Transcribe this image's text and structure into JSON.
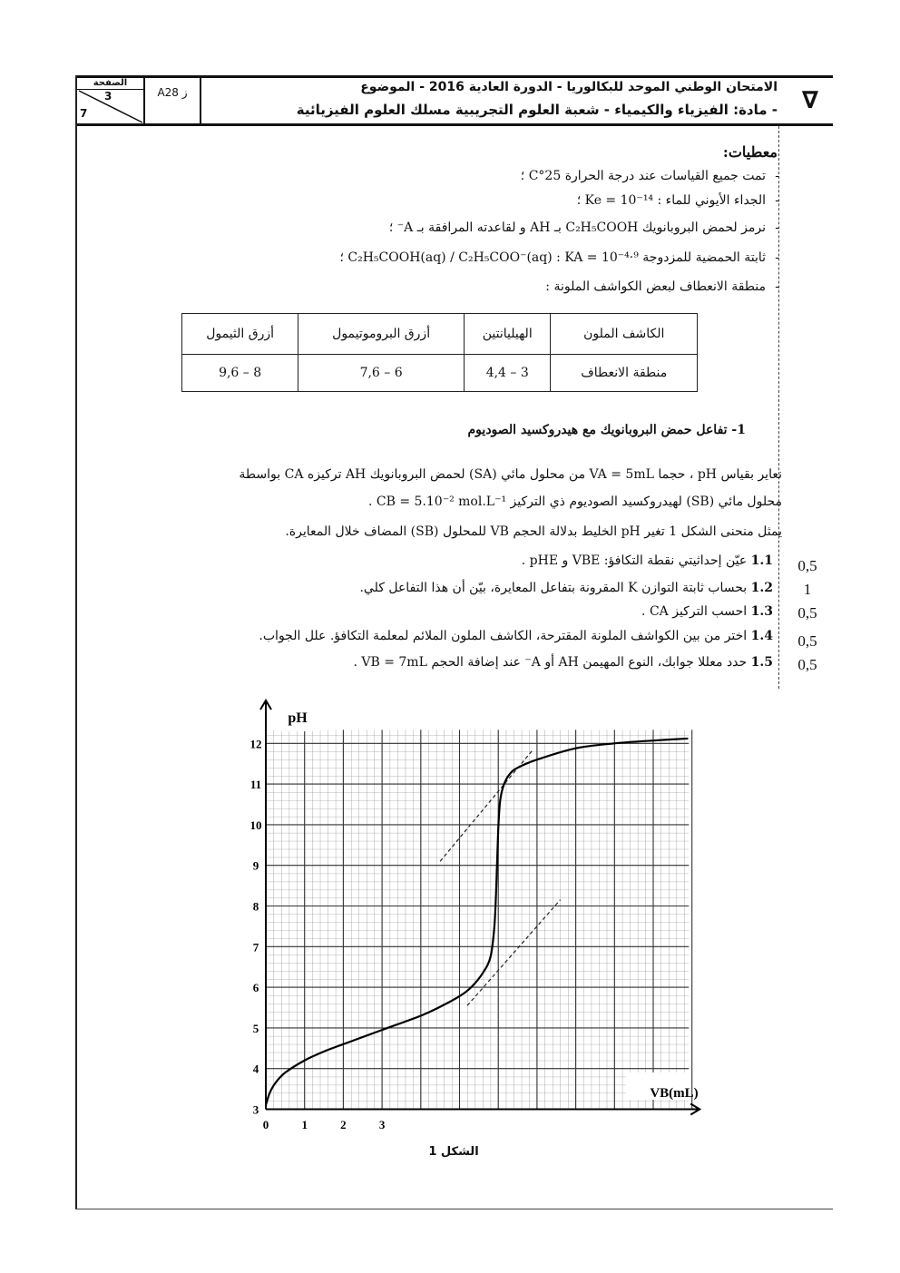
{
  "header": {
    "page_label": "الصفحة",
    "page_current": "3",
    "page_total": "7",
    "code": "A28 ز",
    "title_line1": "الامتحان الوطني الموحد للبكالوريا - الدورة العادية  2016 - الموضوع",
    "title_line2": "- مادة: الفيزياء والكيمياء - شعبة العلوم التجريبية مسلك العلوم الفيزيائية",
    "symbol": "∇"
  },
  "givens": {
    "title": "معطيات:",
    "items": [
      "تمت جميع القياسات عند درجة الحرارة 25°C ؛",
      "الجداء الأيوني للماء : Ke = 10⁻¹⁴ ؛",
      "نرمز لحمض البروبانويك C₂H₅COOH بـ AH و لقاعدته المرافقة بـ A⁻ ؛",
      "ثابتة الحمضية للمزدوجة C₂H₅COOH(aq) / C₂H₅COO⁻(aq) : KA = 10⁻⁴·⁹ ؛",
      "منطقة الانعطاف لبعض الكواشف الملونة :"
    ]
  },
  "indicator_table": {
    "headers": [
      "الكاشف الملون",
      "الهيليانتين",
      "أزرق البروموتيمول",
      "أزرق الثيمول"
    ],
    "row": [
      "منطقة الانعطاف",
      "3 – 4,4",
      "6 – 7,6",
      "8 – 9,6"
    ]
  },
  "section1": {
    "title": "1- تفاعل حمض البروبانويك مع هيدروكسيد الصوديوم",
    "paragraph": [
      "نعاير بقياس pH ، حجما VA = 5mL من محلول مائي (SA) لحمض البروبانويك AH تركيزه CA بواسطة",
      "محلول مائي (SB) لهيدروكسيد الصوديوم ذي التركيز CB = 5.10⁻² mol.L⁻¹ .",
      "يمثل منحنى الشكل 1 تغير pH الخليط بدلالة الحجم VB للمحلول (SB) المضاف خلال المعايرة."
    ],
    "questions": [
      {
        "num": "1.1",
        "text": "عيّن إحداثيتي نقطة التكافؤ: VBE و pHE .",
        "score": "0,5"
      },
      {
        "num": "1.2",
        "text": "بحساب ثابتة التوازن K المقرونة بتفاعل المعايرة، بيّن أن هذا التفاعل كلي.",
        "score": "1"
      },
      {
        "num": "1.3",
        "text": "احسب التركيز CA .",
        "score": "0,5"
      },
      {
        "num": "1.4",
        "text": "اختر من بين الكواشف الملونة المقترحة، الكاشف الملون الملائم لمعلمة التكافؤ. علل الجواب.",
        "score": "0,5"
      },
      {
        "num": "1.5",
        "text": "حدد معللا جوابك، النوع المهيمن AH أو A⁻ عند إضافة الحجم VB = 7mL .",
        "score": "0,5"
      }
    ]
  },
  "chart_data": {
    "type": "line",
    "title": "",
    "caption": "الشكل 1",
    "xlabel": "VB(mL)",
    "ylabel": "pH",
    "xlim": [
      0,
      11.2
    ],
    "ylim": [
      3,
      12.4
    ],
    "x_ticks": [
      "0",
      "1",
      "2",
      "3"
    ],
    "y_ticks": [
      "3",
      "4",
      "5",
      "6",
      "7",
      "8",
      "9",
      "10",
      "11",
      "12"
    ],
    "grid": true,
    "series": [
      {
        "x": [
          0,
          0.1,
          0.25,
          0.5,
          1,
          1.5,
          2,
          3,
          4,
          4.5,
          5,
          5.3,
          5.6,
          5.8,
          5.9,
          5.95,
          6.0,
          6.05,
          6.15,
          6.3,
          6.5,
          7,
          8,
          9,
          10,
          10.9
        ],
        "y": [
          3.1,
          3.4,
          3.65,
          3.9,
          4.2,
          4.42,
          4.6,
          4.95,
          5.3,
          5.52,
          5.78,
          6.0,
          6.35,
          6.75,
          7.5,
          8.5,
          9.9,
          10.6,
          11.0,
          11.25,
          11.4,
          11.6,
          11.88,
          12.0,
          12.07,
          12.12
        ]
      }
    ],
    "tangents": [
      {
        "x": [
          4.5,
          6.9
        ],
        "y": [
          9.1,
          11.85
        ],
        "style": "dashed"
      },
      {
        "x": [
          5.2,
          7.6
        ],
        "y": [
          5.55,
          8.15
        ],
        "style": "dashed"
      }
    ]
  }
}
